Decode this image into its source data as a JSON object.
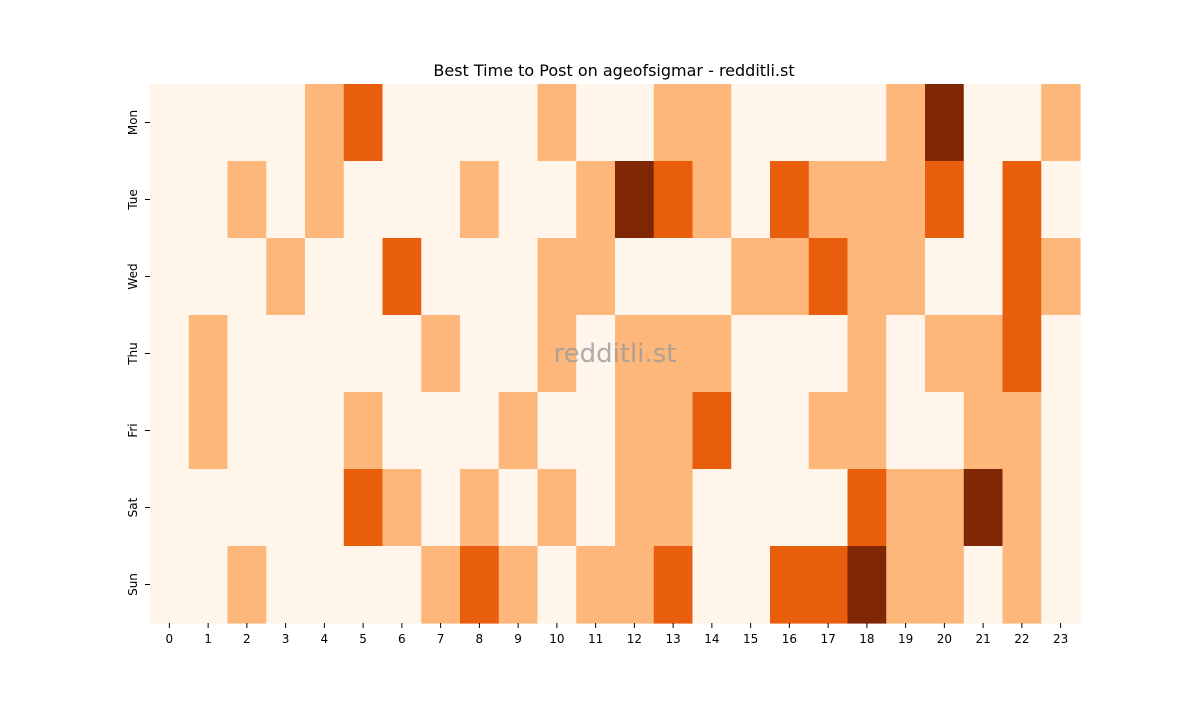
{
  "chart_data": {
    "type": "heatmap",
    "title": "Best Time to Post on ageofsigmar - redditli.st",
    "watermark": "redditli.st",
    "xlabel": "",
    "ylabel": "",
    "x": [
      0,
      1,
      2,
      3,
      4,
      5,
      6,
      7,
      8,
      9,
      10,
      11,
      12,
      13,
      14,
      15,
      16,
      17,
      18,
      19,
      20,
      21,
      22,
      23
    ],
    "y": [
      "Mon",
      "Tue",
      "Wed",
      "Thu",
      "Fri",
      "Sat",
      "Sun"
    ],
    "values": [
      [
        0,
        0,
        0,
        0,
        1,
        2,
        0,
        0,
        0,
        0,
        1,
        0,
        0,
        1,
        1,
        0,
        0,
        0,
        0,
        1,
        3,
        0,
        0,
        1
      ],
      [
        0,
        0,
        1,
        0,
        1,
        0,
        0,
        0,
        1,
        0,
        0,
        1,
        3,
        2,
        1,
        0,
        2,
        1,
        1,
        1,
        2,
        0,
        2,
        0
      ],
      [
        0,
        0,
        0,
        1,
        0,
        0,
        2,
        0,
        0,
        0,
        1,
        1,
        0,
        0,
        0,
        1,
        1,
        2,
        1,
        1,
        0,
        0,
        2,
        1
      ],
      [
        0,
        1,
        0,
        0,
        0,
        0,
        0,
        1,
        0,
        0,
        1,
        0,
        1,
        1,
        1,
        0,
        0,
        0,
        1,
        0,
        1,
        1,
        2,
        0
      ],
      [
        0,
        1,
        0,
        0,
        0,
        1,
        0,
        0,
        0,
        1,
        0,
        0,
        1,
        1,
        2,
        0,
        0,
        1,
        1,
        0,
        0,
        1,
        1,
        0
      ],
      [
        0,
        0,
        0,
        0,
        0,
        2,
        1,
        0,
        1,
        0,
        1,
        0,
        1,
        1,
        0,
        0,
        0,
        0,
        2,
        1,
        1,
        3,
        1,
        0
      ],
      [
        0,
        0,
        1,
        0,
        0,
        0,
        0,
        1,
        2,
        1,
        0,
        1,
        1,
        2,
        0,
        0,
        2,
        2,
        3,
        1,
        1,
        0,
        1,
        0
      ]
    ],
    "colorscale": [
      "#fff5eb",
      "#fdb77a",
      "#e95e0d",
      "#7f2704"
    ],
    "grid": false,
    "legend": "none"
  }
}
